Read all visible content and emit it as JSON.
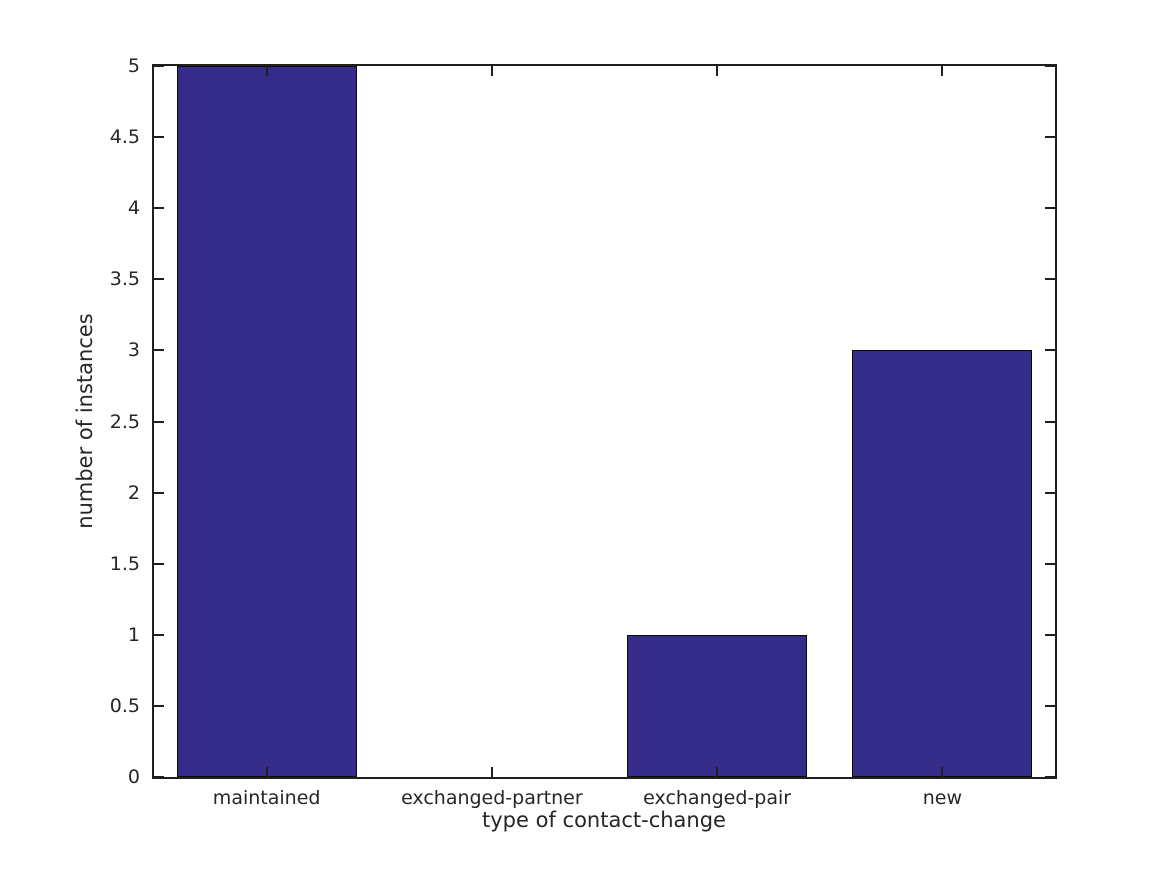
{
  "chart_data": {
    "type": "bar",
    "categories": [
      "maintained",
      "exchanged-partner",
      "exchanged-pair",
      "new"
    ],
    "values": [
      5,
      0,
      1,
      3
    ],
    "title": "",
    "xlabel": "type of contact-change",
    "ylabel": "number of instances",
    "ylim": [
      0,
      5
    ],
    "ytick_step": 0.5,
    "ytick_labels": [
      "0",
      "0.5",
      "1",
      "1.5",
      "2",
      "2.5",
      "3",
      "3.5",
      "4",
      "4.5",
      "5"
    ],
    "bar_color": "#352B88",
    "bar_edge_color": "#0a0a0a",
    "axis_color": "#1f1f1f",
    "text_color": "#262626",
    "background_color": "#ffffff",
    "bar_width_fraction": 0.8,
    "grid": false,
    "tick_direction": "in",
    "box": true,
    "legend": null
  }
}
